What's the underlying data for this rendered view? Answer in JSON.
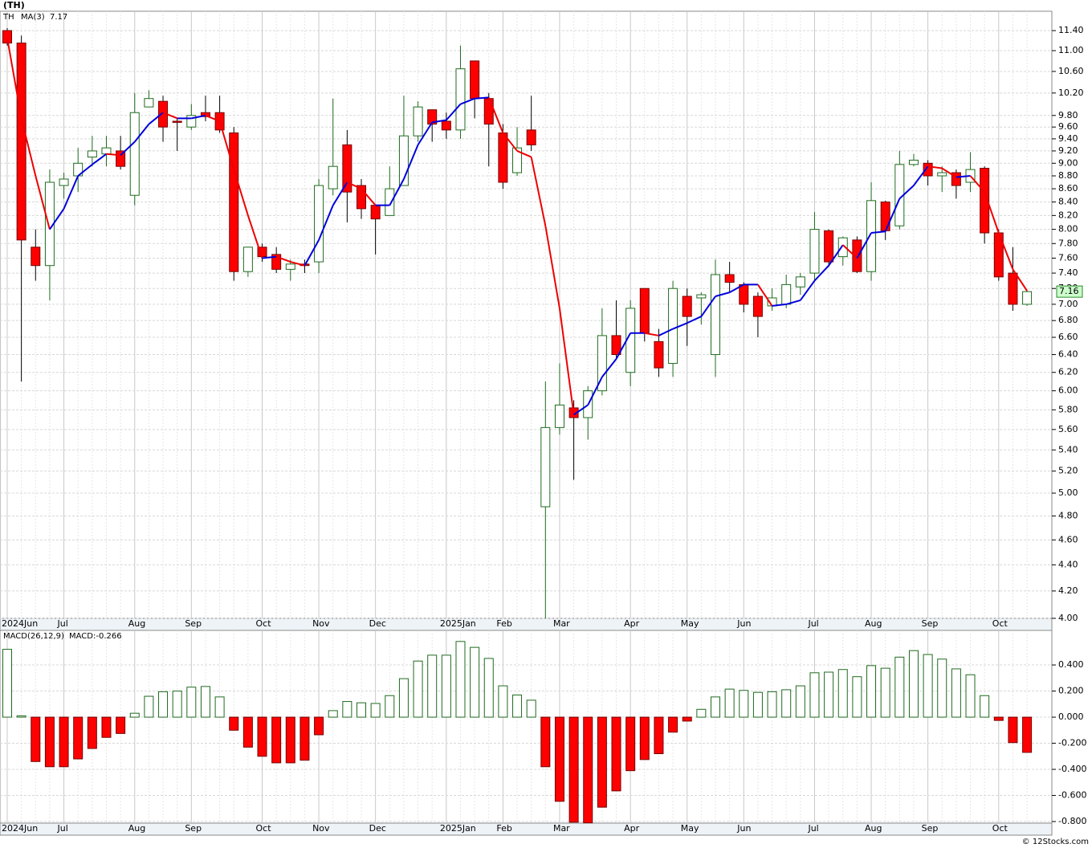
{
  "chart_data": [
    {
      "type": "candlestick",
      "title": "(TH)",
      "symbol": "TH",
      "log_scale": true,
      "grid": true,
      "up_color": "#1f6b1f",
      "down_color": "#ff0000",
      "credit": "© 12Stocks.com",
      "categories": [
        "2024Jun",
        null,
        null,
        null,
        "Jul",
        null,
        null,
        null,
        null,
        "Aug",
        null,
        null,
        null,
        "Sep",
        null,
        null,
        null,
        null,
        "Oct",
        null,
        null,
        null,
        "Nov",
        null,
        null,
        null,
        "Dec",
        null,
        null,
        null,
        null,
        "2025Jan",
        null,
        null,
        null,
        "Feb",
        null,
        null,
        null,
        "Mar",
        null,
        null,
        null,
        null,
        "Apr",
        null,
        null,
        null,
        "May",
        null,
        null,
        null,
        "Jun",
        null,
        null,
        null,
        null,
        "Jul",
        null,
        null,
        null,
        "Aug",
        null,
        null,
        null,
        "Sep",
        null,
        null,
        null,
        null,
        "Oct",
        null,
        null
      ],
      "open": [
        11.4,
        11.15,
        7.75,
        7.5,
        8.65,
        8.8,
        9.1,
        9.15,
        9.2,
        8.5,
        9.95,
        10.05,
        9.7,
        9.6,
        9.85,
        9.85,
        9.5,
        7.42,
        7.75,
        7.65,
        7.45,
        7.52,
        7.55,
        8.6,
        9.3,
        8.65,
        8.35,
        8.2,
        8.65,
        9.45,
        9.9,
        9.7,
        9.55,
        10.8,
        10.1,
        9.5,
        8.85,
        9.55,
        4.88,
        5.62,
        5.82,
        5.72,
        6.0,
        6.62,
        6.2,
        7.2,
        6.55,
        6.3,
        7.1,
        7.08,
        6.4,
        7.38,
        7.25,
        7.1,
        6.98,
        7.0,
        7.22,
        7.4,
        7.98,
        7.62,
        7.85,
        7.42,
        8.4,
        8.05,
        8.98,
        9.0,
        8.8,
        8.85,
        8.7,
        8.92,
        7.95,
        7.4,
        7.0
      ],
      "high": [
        11.45,
        11.3,
        8.0,
        8.9,
        8.85,
        9.25,
        9.45,
        9.45,
        9.45,
        10.2,
        10.25,
        10.15,
        9.75,
        10.0,
        10.15,
        10.15,
        9.6,
        7.75,
        7.8,
        7.75,
        7.58,
        7.58,
        8.75,
        10.1,
        9.55,
        8.75,
        8.35,
        8.95,
        10.15,
        10.05,
        9.9,
        9.85,
        11.1,
        10.8,
        10.2,
        9.65,
        9.6,
        10.15,
        6.1,
        6.3,
        5.9,
        6.05,
        6.95,
        7.05,
        7.05,
        7.2,
        6.7,
        7.3,
        7.2,
        7.15,
        7.58,
        7.55,
        7.28,
        7.15,
        7.2,
        7.38,
        7.4,
        8.25,
        8.0,
        7.9,
        7.9,
        8.7,
        8.42,
        9.2,
        9.15,
        9.05,
        8.95,
        8.9,
        9.18,
        8.95,
        8.0,
        7.75,
        7.18
      ],
      "low": [
        11.1,
        6.1,
        7.3,
        7.05,
        8.45,
        8.55,
        8.95,
        8.95,
        8.9,
        8.35,
        9.95,
        9.35,
        9.2,
        9.55,
        9.7,
        9.5,
        7.3,
        7.35,
        7.55,
        7.4,
        7.3,
        7.4,
        7.4,
        8.5,
        8.1,
        8.15,
        7.65,
        8.2,
        8.65,
        9.35,
        9.35,
        9.4,
        9.4,
        9.75,
        8.95,
        8.6,
        8.8,
        9.2,
        4.0,
        5.55,
        5.12,
        5.5,
        5.95,
        6.35,
        6.05,
        6.55,
        6.15,
        6.15,
        6.5,
        6.75,
        6.15,
        7.15,
        6.9,
        6.6,
        6.92,
        6.95,
        7.12,
        7.3,
        7.48,
        7.5,
        7.4,
        7.3,
        7.85,
        8.0,
        8.95,
        8.65,
        8.55,
        8.45,
        8.55,
        7.8,
        7.3,
        6.92,
        6.98
      ],
      "close": [
        11.15,
        7.85,
        7.5,
        8.7,
        8.75,
        9.0,
        9.2,
        9.25,
        8.95,
        9.85,
        10.1,
        9.6,
        9.68,
        9.8,
        9.78,
        9.55,
        7.42,
        7.75,
        7.62,
        7.45,
        7.52,
        7.5,
        8.65,
        8.95,
        8.55,
        8.3,
        8.15,
        8.6,
        9.45,
        9.95,
        9.65,
        9.55,
        10.65,
        10.1,
        9.65,
        8.7,
        9.25,
        9.3,
        5.62,
        5.85,
        5.72,
        6.0,
        6.62,
        6.4,
        6.95,
        6.65,
        6.25,
        7.2,
        6.85,
        7.12,
        7.38,
        7.28,
        7.0,
        6.85,
        7.08,
        7.25,
        7.35,
        8.0,
        7.55,
        7.88,
        7.42,
        8.42,
        7.98,
        8.98,
        9.05,
        8.8,
        8.85,
        8.65,
        8.9,
        7.95,
        7.35,
        7.0,
        7.16
      ],
      "series": [
        {
          "name": "MA(3)",
          "up_color": "#0000dd",
          "down_color": "#ee0000",
          "values": [
            11.25,
            9.75,
            8.8,
            8.0,
            8.3,
            8.8,
            8.98,
            9.15,
            9.13,
            9.35,
            9.65,
            9.85,
            9.75,
            9.75,
            9.8,
            9.7,
            8.9,
            8.2,
            7.6,
            7.62,
            7.55,
            7.5,
            7.85,
            8.35,
            8.7,
            8.6,
            8.35,
            8.35,
            8.75,
            9.3,
            9.68,
            9.72,
            10.0,
            10.1,
            10.12,
            9.5,
            9.2,
            9.1,
            8.05,
            6.95,
            5.75,
            5.85,
            6.15,
            6.35,
            6.65,
            6.65,
            6.62,
            6.7,
            6.77,
            6.85,
            7.1,
            7.15,
            7.25,
            7.25,
            6.98,
            7.0,
            7.05,
            7.3,
            7.5,
            7.78,
            7.6,
            7.95,
            7.97,
            8.45,
            8.65,
            8.95,
            8.92,
            8.78,
            8.8,
            8.55,
            7.95,
            7.45,
            7.17
          ]
        }
      ],
      "ylim": [
        4.0,
        11.8
      ],
      "yticks": [
        {
          "value": 4.0,
          "label": "4.00"
        },
        {
          "value": 4.2,
          "label": "4.20"
        },
        {
          "value": 4.4,
          "label": "4.40"
        },
        {
          "value": 4.6,
          "label": "4.60"
        },
        {
          "value": 4.8,
          "label": "4.80"
        },
        {
          "value": 5.0,
          "label": "5.00"
        },
        {
          "value": 5.2,
          "label": "5.20"
        },
        {
          "value": 5.4,
          "label": "5.40"
        },
        {
          "value": 5.6,
          "label": "5.60"
        },
        {
          "value": 5.8,
          "label": "5.80"
        },
        {
          "value": 6.0,
          "label": "6.00"
        },
        {
          "value": 6.2,
          "label": "6.20"
        },
        {
          "value": 6.4,
          "label": "6.40"
        },
        {
          "value": 6.6,
          "label": "6.60"
        },
        {
          "value": 6.8,
          "label": "6.80"
        },
        {
          "value": 7.0,
          "label": "7.00"
        },
        {
          "value": 7.2,
          "label": "7.20"
        },
        {
          "value": 7.4,
          "label": "7.40"
        },
        {
          "value": 7.6,
          "label": "7.60"
        },
        {
          "value": 7.8,
          "label": "7.80"
        },
        {
          "value": 8.0,
          "label": "8.00"
        },
        {
          "value": 8.2,
          "label": "8.20"
        },
        {
          "value": 8.4,
          "label": "8.40"
        },
        {
          "value": 8.6,
          "label": "8.60"
        },
        {
          "value": 8.8,
          "label": "8.80"
        },
        {
          "value": 9.0,
          "label": "9.00"
        },
        {
          "value": 9.2,
          "label": "9.20"
        },
        {
          "value": 9.4,
          "label": "9.40"
        },
        {
          "value": 9.6,
          "label": "9.60"
        },
        {
          "value": 9.8,
          "label": "9.80"
        },
        {
          "value": 10.2,
          "label": "10.20"
        },
        {
          "value": 10.6,
          "label": "10.60"
        },
        {
          "value": 11.0,
          "label": "11.00"
        },
        {
          "value": 11.4,
          "label": "11.40"
        }
      ]
    },
    {
      "type": "bar",
      "title": "MACD(26,12,9)",
      "legend": "MACD:-0.266",
      "grid": true,
      "up_color": "#1f6b1f",
      "down_color": "#ff0000",
      "categories": [
        "2024Jun",
        null,
        null,
        null,
        "Jul",
        null,
        null,
        null,
        null,
        "Aug",
        null,
        null,
        null,
        "Sep",
        null,
        null,
        null,
        null,
        "Oct",
        null,
        null,
        null,
        "Nov",
        null,
        null,
        null,
        "Dec",
        null,
        null,
        null,
        null,
        "2025Jan",
        null,
        null,
        null,
        "Feb",
        null,
        null,
        null,
        "Mar",
        null,
        null,
        null,
        null,
        "Apr",
        null,
        null,
        null,
        "May",
        null,
        null,
        null,
        "Jun",
        null,
        null,
        null,
        null,
        "Jul",
        null,
        null,
        null,
        "Aug",
        null,
        null,
        null,
        "Sep",
        null,
        null,
        null,
        null,
        "Oct",
        null,
        null
      ],
      "values": [
        0.52,
        0.01,
        -0.34,
        -0.38,
        -0.38,
        -0.32,
        -0.24,
        -0.155,
        -0.125,
        0.03,
        0.16,
        0.195,
        0.2,
        0.23,
        0.235,
        0.155,
        -0.1,
        -0.23,
        -0.3,
        -0.35,
        -0.35,
        -0.33,
        -0.135,
        0.05,
        0.12,
        0.11,
        0.105,
        0.165,
        0.295,
        0.43,
        0.475,
        0.475,
        0.58,
        0.535,
        0.45,
        0.24,
        0.17,
        0.13,
        -0.38,
        -0.645,
        -0.805,
        -0.81,
        -0.69,
        -0.565,
        -0.41,
        -0.325,
        -0.28,
        -0.115,
        -0.03,
        0.06,
        0.155,
        0.215,
        0.205,
        0.19,
        0.195,
        0.21,
        0.24,
        0.34,
        0.345,
        0.365,
        0.31,
        0.395,
        0.375,
        0.46,
        0.51,
        0.48,
        0.445,
        0.37,
        0.325,
        0.165,
        -0.025,
        -0.195,
        -0.27
      ],
      "ylim": [
        -0.812,
        0.665
      ],
      "yticks": [
        {
          "value": -0.8,
          "label": "-0.800"
        },
        {
          "value": -0.6,
          "label": "-0.600"
        },
        {
          "value": -0.4,
          "label": "-0.400"
        },
        {
          "value": -0.2,
          "label": "-0.200"
        },
        {
          "value": 0,
          "label": "0.000"
        },
        {
          "value": 0.2,
          "label": "0.200"
        },
        {
          "value": 0.4,
          "label": "0.400"
        }
      ]
    }
  ]
}
